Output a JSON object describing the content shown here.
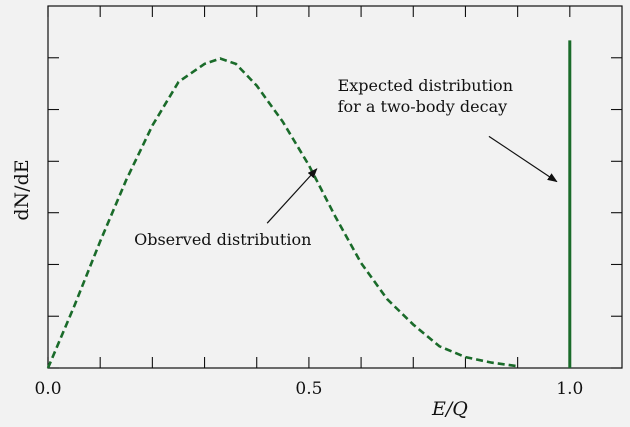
{
  "chart_data": {
    "type": "line",
    "title": "",
    "xlabel": "E/Q",
    "ylabel": "dN/dE",
    "xlim": [
      0.0,
      1.1
    ],
    "ylim": [
      0,
      1.0
    ],
    "x_ticks": [
      0.0,
      0.5,
      1.0
    ],
    "x_tick_labels": [
      "0.0",
      "0.5",
      "1.0"
    ],
    "x_minor_ticks": [
      0.0,
      0.1,
      0.2,
      0.3,
      0.4,
      0.5,
      0.6,
      0.7,
      0.8,
      0.9,
      1.0
    ],
    "y_ticks": [
      0.0,
      0.143,
      0.286,
      0.429,
      0.571,
      0.714,
      0.857
    ],
    "grid": false,
    "legend": "none",
    "series": [
      {
        "style": "dashed",
        "color": "#1a6b2a",
        "x": [
          0.0,
          0.05,
          0.1,
          0.15,
          0.2,
          0.25,
          0.3,
          0.33,
          0.36,
          0.4,
          0.45,
          0.5,
          0.55,
          0.6,
          0.65,
          0.7,
          0.75,
          0.8,
          0.85,
          0.9
        ],
        "y": [
          0.0,
          0.17,
          0.35,
          0.52,
          0.67,
          0.79,
          0.84,
          0.855,
          0.84,
          0.78,
          0.68,
          0.56,
          0.42,
          0.29,
          0.19,
          0.12,
          0.06,
          0.03,
          0.015,
          0.005
        ]
      },
      {
        "style": "solid",
        "color": "#1a6b2a",
        "x": [
          1.0,
          1.0
        ],
        "y": [
          0.0,
          0.905
        ]
      }
    ],
    "annotations": [
      {
        "lines": [
          "Observed distribution"
        ],
        "text_x": 0.165,
        "text_y": 0.34,
        "arrow_from": [
          0.42,
          0.4
        ],
        "arrow_to": [
          0.515,
          0.55
        ]
      },
      {
        "lines": [
          "Expected distribution",
          "for a two-body decay"
        ],
        "text_x": 0.555,
        "text_y": 0.765,
        "arrow_from": [
          0.845,
          0.64
        ],
        "arrow_to": [
          0.975,
          0.515
        ]
      }
    ]
  }
}
